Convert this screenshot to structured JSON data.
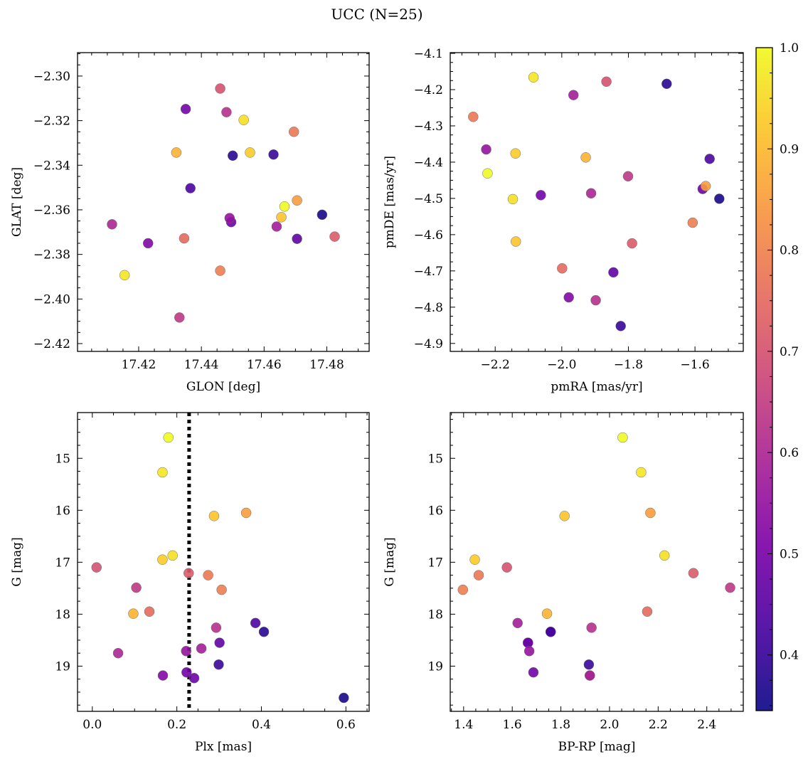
{
  "figure": {
    "title": "UCC (N=25)"
  },
  "colorbar": {
    "vmin": 0.345,
    "vmax": 1.0,
    "cmap": "plasma",
    "ticks": [
      0.4,
      0.5,
      0.6,
      0.7,
      0.8,
      0.9,
      1.0
    ],
    "tick_labels": [
      "0.4",
      "0.5",
      "0.6",
      "0.7",
      "0.8",
      "0.9",
      "1.0"
    ]
  },
  "stars_prob": [
    1.0,
    0.97,
    0.96,
    0.93,
    0.92,
    0.89,
    0.85,
    0.79,
    0.78,
    0.75,
    0.72,
    0.7,
    0.64,
    0.62,
    0.6,
    0.58,
    0.55,
    0.52,
    0.49,
    0.48,
    0.46,
    0.43,
    0.4,
    0.38,
    0.36
  ],
  "chart_data": [
    {
      "type": "scatter",
      "panel": "top-left",
      "xlabel": "GLON [deg]",
      "ylabel": "GLAT [deg]",
      "xlim": [
        17.4005,
        17.4935
      ],
      "ylim": [
        -2.4235,
        -2.2895
      ],
      "invert_y": false,
      "xticks": [
        17.42,
        17.44,
        17.46,
        17.48
      ],
      "xtick_labels": [
        "17.42",
        "17.44",
        "17.46",
        "17.48"
      ],
      "yticks": [
        -2.3,
        -2.32,
        -2.34,
        -2.36,
        -2.38,
        -2.4,
        -2.42
      ],
      "ytick_labels": [
        "−2.30",
        "−2.32",
        "−2.34",
        "−2.36",
        "−2.38",
        "−2.40",
        "−2.42"
      ],
      "x": [
        17.4665,
        17.4155,
        17.4535,
        17.4555,
        17.4655,
        17.432,
        17.4705,
        17.446,
        17.4695,
        17.4345,
        17.4825,
        17.446,
        17.433,
        17.448,
        17.4115,
        17.464,
        17.449,
        17.423,
        17.435,
        17.4495,
        17.4705,
        17.4365,
        17.463,
        17.45,
        17.4785
      ],
      "y": [
        -2.3585,
        -2.3893,
        -2.3197,
        -2.3343,
        -2.3633,
        -2.3343,
        -2.3558,
        -2.3873,
        -2.325,
        -2.3728,
        -2.372,
        -2.3056,
        -2.4083,
        -2.3162,
        -2.3665,
        -2.3675,
        -2.3637,
        -2.375,
        -2.3148,
        -2.3655,
        -2.373,
        -2.3503,
        -2.3352,
        -2.3357,
        -2.3622
      ]
    },
    {
      "type": "scatter",
      "panel": "top-right",
      "xlabel": "pmRA [mas/yr]",
      "ylabel": "pmDE [mas/yr]",
      "xlim": [
        -2.335,
        -1.455
      ],
      "ylim": [
        -4.922,
        -4.098
      ],
      "invert_y": false,
      "xticks": [
        -2.2,
        -2.0,
        -1.8,
        -1.6
      ],
      "xtick_labels": [
        "−2.2",
        "−2.0",
        "−1.8",
        "−1.6"
      ],
      "yticks": [
        -4.1,
        -4.2,
        -4.3,
        -4.4,
        -4.5,
        -4.6,
        -4.7,
        -4.8,
        -4.9
      ],
      "ytick_labels": [
        "−4.1",
        "−4.2",
        "−4.3",
        "−4.4",
        "−4.5",
        "−4.6",
        "−4.7",
        "−4.8",
        "−4.9"
      ],
      "x": [
        -2.223,
        -2.085,
        -2.147,
        -2.139,
        -2.138,
        -1.928,
        -1.568,
        -1.607,
        -2.266,
        -1.999,
        -1.789,
        -1.866,
        -1.801,
        -1.898,
        -1.912,
        -1.965,
        -2.227,
        -1.979,
        -2.063,
        -1.577,
        -1.845,
        -1.556,
        -1.823,
        -1.685,
        -1.527
      ],
      "y": [
        -4.431,
        -4.166,
        -4.502,
        -4.376,
        -4.619,
        -4.387,
        -4.466,
        -4.567,
        -4.275,
        -4.693,
        -4.624,
        -4.178,
        -4.439,
        -4.781,
        -4.486,
        -4.215,
        -4.365,
        -4.773,
        -4.491,
        -4.474,
        -4.704,
        -4.391,
        -4.852,
        -4.184,
        -4.501
      ]
    },
    {
      "type": "scatter",
      "panel": "bottom-left",
      "xlabel": "Plx [mas]",
      "ylabel": "G [mag]",
      "xlim": [
        -0.035,
        0.655
      ],
      "ylim": [
        14.12,
        19.87
      ],
      "invert_y": true,
      "xticks": [
        0.0,
        0.2,
        0.4,
        0.6
      ],
      "xtick_labels": [
        "0.0",
        "0.2",
        "0.4",
        "0.6"
      ],
      "yticks": [
        15,
        16,
        17,
        18,
        19
      ],
      "ytick_labels": [
        "15",
        "16",
        "17",
        "18",
        "19"
      ],
      "vline": {
        "x": 0.229,
        "style": "dotted"
      },
      "x": [
        0.18,
        0.166,
        0.19,
        0.166,
        0.288,
        0.097,
        0.364,
        0.306,
        0.274,
        0.135,
        0.228,
        0.01,
        0.104,
        0.293,
        0.061,
        0.258,
        0.222,
        0.167,
        0.223,
        0.241,
        0.301,
        0.386,
        0.299,
        0.406,
        0.595
      ],
      "y": [
        14.6,
        15.27,
        16.87,
        16.95,
        16.11,
        17.99,
        16.05,
        17.53,
        17.25,
        17.95,
        17.21,
        17.1,
        17.49,
        18.26,
        18.75,
        18.66,
        18.71,
        19.18,
        19.12,
        19.23,
        18.55,
        18.17,
        18.97,
        18.34,
        19.61
      ]
    },
    {
      "type": "scatter",
      "panel": "bottom-right",
      "xlabel": "BP-RP [mag]",
      "ylabel": "G [mag]",
      "xlim": [
        1.345,
        2.55
      ],
      "ylim": [
        14.12,
        19.87
      ],
      "invert_y": true,
      "xticks": [
        1.4,
        1.6,
        1.8,
        2.0,
        2.2,
        2.4
      ],
      "xtick_labels": [
        "1.4",
        "1.6",
        "1.8",
        "2.0",
        "2.2",
        "2.4"
      ],
      "yticks": [
        15,
        16,
        17,
        18,
        19
      ],
      "ytick_labels": [
        "15",
        "16",
        "17",
        "18",
        "19"
      ],
      "x": [
        2.054,
        2.13,
        2.226,
        1.446,
        1.815,
        1.743,
        2.168,
        1.397,
        1.462,
        2.155,
        2.345,
        1.578,
        2.496,
        1.926,
        1.919,
        1.622,
        1.67,
        1.919,
        1.687,
        1.665,
        1.664,
        1.758,
        1.915,
        1.758,
        1.758
      ],
      "y": [
        14.6,
        15.27,
        16.87,
        16.95,
        16.11,
        17.99,
        16.05,
        17.53,
        17.25,
        17.95,
        17.21,
        17.1,
        17.49,
        18.26,
        19.18,
        18.17,
        18.71,
        19.18,
        19.12,
        18.55,
        18.55,
        18.34,
        18.97,
        18.34,
        18.34
      ]
    }
  ]
}
